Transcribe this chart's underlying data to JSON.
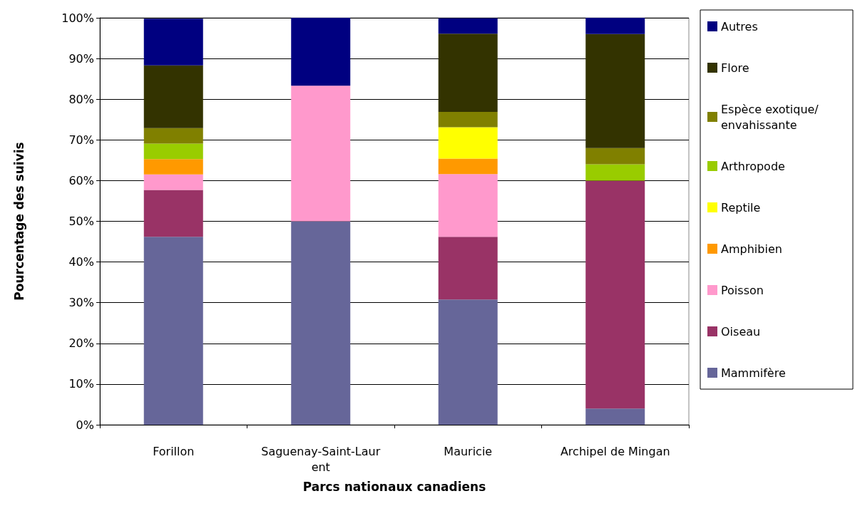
{
  "chart_data": {
    "type": "bar",
    "stacked": true,
    "xlabel": "Parcs nationaux canadiens",
    "ylabel": "Pourcentage des suivis",
    "categories": [
      "Forillon",
      "Saguenay-Saint-Laurent",
      "Mauricie",
      "Archipel de Mingan"
    ],
    "series": [
      {
        "name": "Mammifère",
        "color": "#666699",
        "values": [
          46.2,
          50,
          30.8,
          4
        ]
      },
      {
        "name": "Oiseau",
        "color": "#993366",
        "values": [
          11.5,
          null,
          15.4,
          56
        ]
      },
      {
        "name": "Poisson",
        "color": "#ff99cc",
        "values": [
          3.8,
          33.3,
          15.4,
          null
        ]
      },
      {
        "name": "Amphibien",
        "color": "#ff9900",
        "values": [
          3.8,
          null,
          3.8,
          null
        ]
      },
      {
        "name": "Reptile",
        "color": "#ffff00",
        "values": [
          null,
          null,
          7.7,
          null
        ]
      },
      {
        "name": "Arthropode",
        "color": "#99cc00",
        "values": [
          3.8,
          null,
          null,
          4
        ]
      },
      {
        "name": "Espèce exotique/ envahissante",
        "color": "#808000",
        "values": [
          3.8,
          null,
          3.8,
          4
        ]
      },
      {
        "name": "Flore",
        "color": "#333300",
        "values": [
          15.4,
          null,
          19.2,
          28
        ]
      },
      {
        "name": "Autres",
        "color": "#000080",
        "values": [
          11.5,
          16.7,
          3.8,
          4
        ]
      }
    ],
    "ylim": [
      0,
      100
    ],
    "yticks": [
      {
        "value": 0,
        "label": "0%"
      },
      {
        "value": 10,
        "label": "10%"
      },
      {
        "value": 20,
        "label": "20%"
      },
      {
        "value": 30,
        "label": "30%"
      },
      {
        "value": 40,
        "label": "40%"
      },
      {
        "value": 50,
        "label": "50%"
      },
      {
        "value": 60,
        "label": "60%"
      },
      {
        "value": 70,
        "label": "70%"
      },
      {
        "value": 80,
        "label": "80%"
      },
      {
        "value": 90,
        "label": "90%"
      },
      {
        "value": 100,
        "label": "100%"
      }
    ],
    "grid": "y",
    "legend": "right"
  }
}
